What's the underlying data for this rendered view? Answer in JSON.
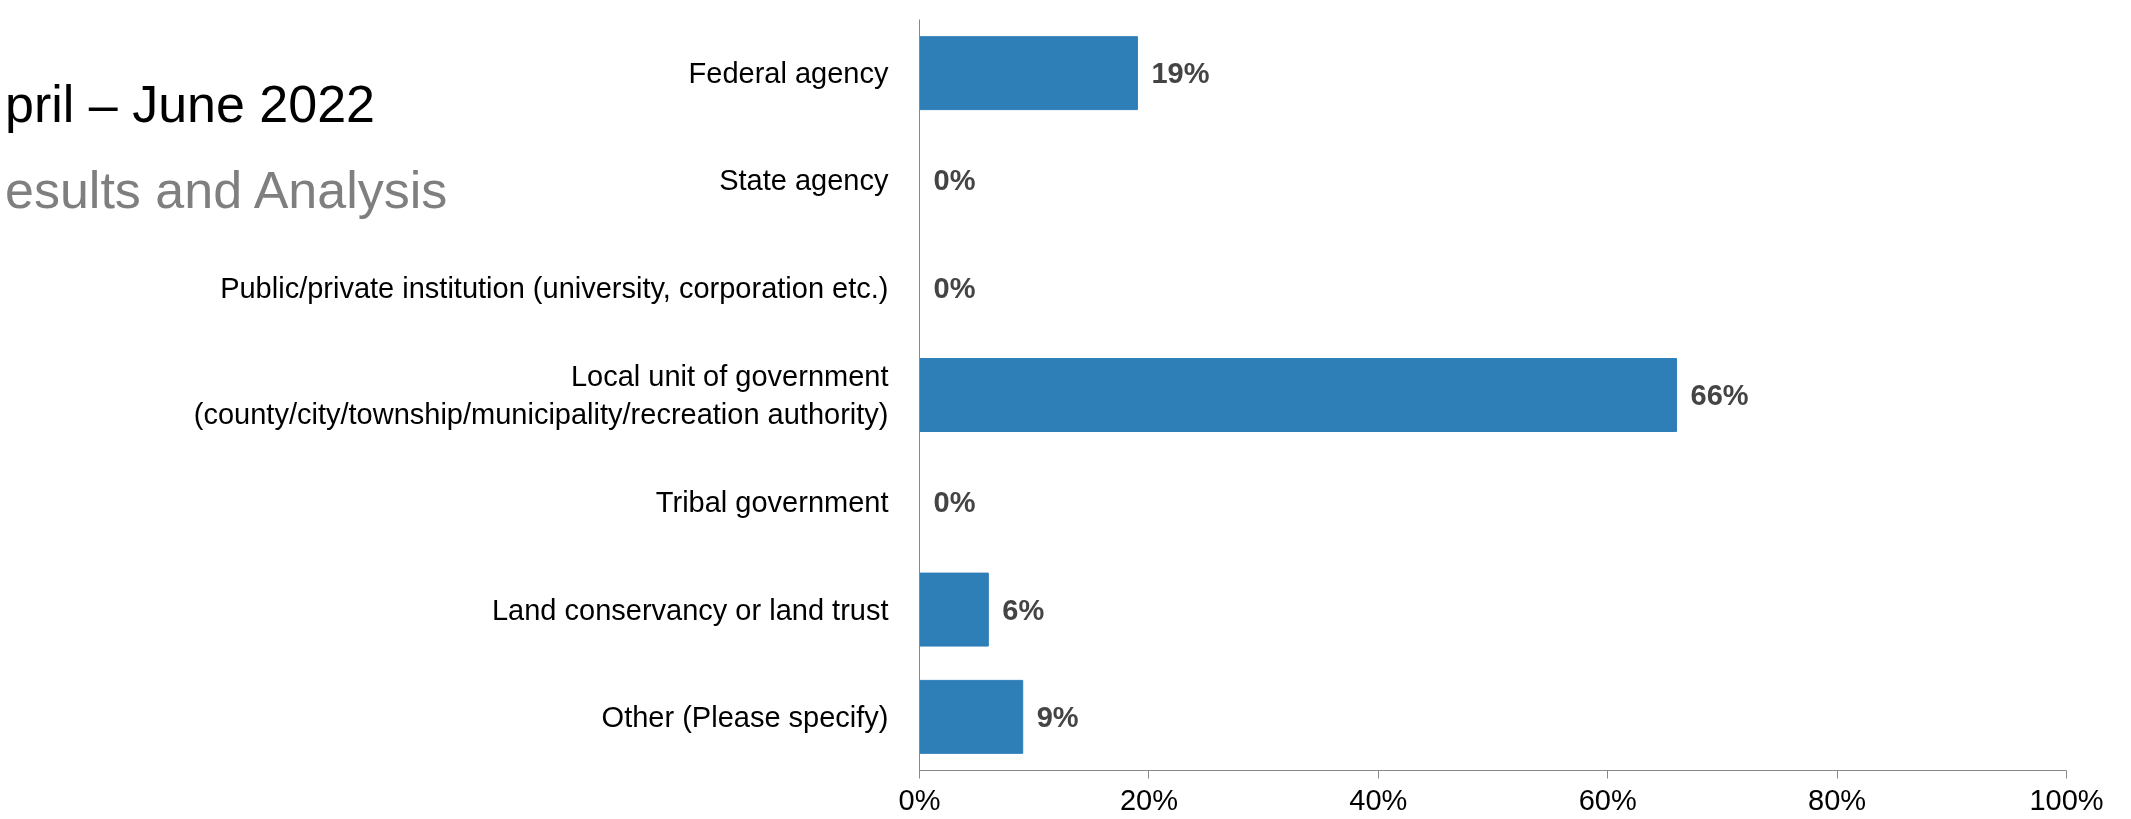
{
  "chart_data": {
    "type": "bar",
    "orientation": "horizontal",
    "title": "pril – June 2022",
    "subtitle": "esults and Analysis",
    "categories": [
      "Federal agency",
      "State agency",
      "Public/private institution (university, corporation etc.)",
      "Local unit of government (county/city/township/municipality/recreation authority)",
      "Tribal government",
      "Land conservancy or land trust",
      "Other (Please specify)"
    ],
    "values": [
      19,
      0,
      0,
      66,
      0,
      6,
      9
    ],
    "value_labels": [
      "19%",
      "0%",
      "0%",
      "66%",
      "0%",
      "6%",
      "9%"
    ],
    "color": "#2e7fb8",
    "xlim": [
      0,
      100
    ],
    "xticks": [
      {
        "value": 0,
        "label": "0%"
      },
      {
        "value": 20,
        "label": "20%"
      },
      {
        "value": 40,
        "label": "40%"
      },
      {
        "value": 60,
        "label": "60%"
      },
      {
        "value": 80,
        "label": "80%"
      },
      {
        "value": 100,
        "label": "100%"
      }
    ],
    "grid": false,
    "legend": false
  }
}
